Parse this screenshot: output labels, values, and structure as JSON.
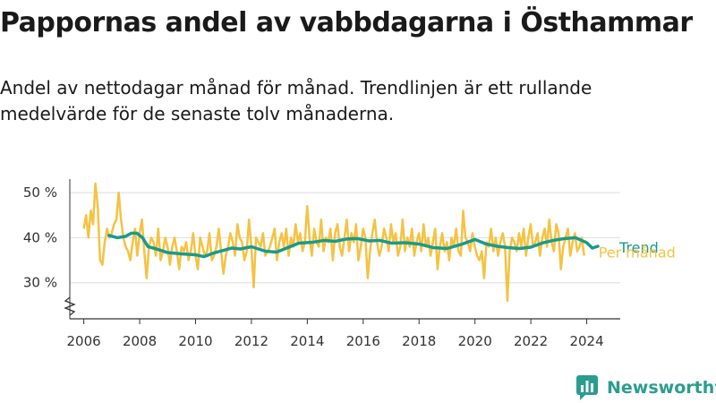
{
  "title": "Pappornas andel av vabbdagarna i Östhammar",
  "subtitle": "Andel av nettodagar månad för månad. Trendlinjen är ett rullande medelvärde för de senaste tolv månaderna.",
  "brand": "Newsworthy",
  "colors": {
    "monthly": "#f5c242",
    "trend": "#1a9a8a",
    "grid": "#dddddd",
    "axis": "#333333",
    "brand": "#2a9d8f"
  },
  "chart_data": {
    "type": "line",
    "title": "Pappornas andel av vabbdagarna i Östhammar",
    "xlabel": "",
    "ylabel": "",
    "xlim": [
      2005.5,
      2025.2
    ],
    "ylim": [
      22,
      53
    ],
    "y_ticks": [
      30,
      40,
      50
    ],
    "y_tick_labels": [
      "30 %",
      "40 %",
      "50 %"
    ],
    "x_ticks": [
      2006,
      2008,
      2010,
      2012,
      2014,
      2016,
      2018,
      2020,
      2022,
      2024
    ],
    "x_tick_labels": [
      "2006",
      "2008",
      "2010",
      "2012",
      "2014",
      "2016",
      "2018",
      "2020",
      "2022",
      "2024"
    ],
    "legend": {
      "position": "right",
      "entries": [
        "Trend",
        "Per månad"
      ]
    },
    "series": [
      {
        "name": "Per månad",
        "color": "#f5c242",
        "x_start": 2006.0,
        "step": 0.0833,
        "values": [
          42,
          45,
          40,
          46,
          43,
          52,
          47,
          35,
          34,
          39,
          42,
          40,
          41,
          43,
          44,
          50,
          44,
          40,
          38,
          37,
          35,
          39,
          42,
          36,
          41,
          44,
          37,
          31,
          38,
          40,
          39,
          36,
          42,
          35,
          37,
          40,
          38,
          34,
          38,
          40,
          37,
          33,
          38,
          37,
          39,
          35,
          37,
          41,
          36,
          33,
          40,
          38,
          36,
          37,
          41,
          35,
          36,
          38,
          42,
          37,
          32,
          36,
          38,
          41,
          39,
          36,
          43,
          40,
          39,
          35,
          37,
          44,
          38,
          29,
          40,
          39,
          38,
          41,
          36,
          37,
          38,
          40,
          42,
          35,
          39,
          41,
          38,
          42,
          36,
          40,
          38,
          43,
          39,
          41,
          37,
          39,
          47,
          40,
          36,
          42,
          39,
          38,
          44,
          37,
          40,
          39,
          42,
          35,
          41,
          43,
          38,
          36,
          40,
          44,
          37,
          41,
          39,
          43,
          35,
          38,
          42,
          40,
          31,
          37,
          41,
          44,
          39,
          36,
          38,
          42,
          40,
          37,
          43,
          39,
          41,
          36,
          38,
          44,
          37,
          40,
          38,
          42,
          36,
          39,
          41,
          37,
          43,
          38,
          40,
          36,
          39,
          42,
          33,
          38,
          41,
          37,
          39,
          35,
          40,
          38,
          42,
          37,
          36,
          46,
          40,
          39,
          37,
          41,
          38,
          36,
          35,
          37,
          31,
          39,
          38,
          42,
          37,
          40,
          36,
          39,
          41,
          38,
          26,
          37,
          40,
          39,
          37,
          41,
          38,
          42,
          36,
          40,
          43,
          38,
          39,
          41,
          36,
          40,
          42,
          38,
          44,
          39,
          37,
          43,
          41,
          33,
          38,
          40,
          42,
          36,
          39,
          41,
          37,
          38,
          40,
          36
        ]
      },
      {
        "name": "Trend",
        "color": "#1a9a8a",
        "x": [
          2006.9,
          2007.2,
          2007.5,
          2007.7,
          2007.9,
          2008.1,
          2008.3,
          2008.6,
          2009.0,
          2009.5,
          2010.0,
          2010.3,
          2010.7,
          2011.0,
          2011.3,
          2011.6,
          2012.0,
          2012.5,
          2012.9,
          2013.3,
          2013.7,
          2014.2,
          2014.6,
          2015.0,
          2015.4,
          2015.8,
          2016.2,
          2016.6,
          2017.0,
          2017.5,
          2018.0,
          2018.5,
          2019.0,
          2019.5,
          2020.0,
          2020.4,
          2020.8,
          2021.2,
          2021.6,
          2022.0,
          2022.4,
          2022.8,
          2023.2,
          2023.6,
          2024.0,
          2024.2,
          2024.4
        ],
        "values": [
          40.5,
          40,
          40.3,
          41,
          41,
          40,
          38,
          37.5,
          36.7,
          36.4,
          36.2,
          35.8,
          36.7,
          37.2,
          37.7,
          37.5,
          38,
          37,
          36.8,
          37.8,
          38.8,
          39,
          39.4,
          39.2,
          39.7,
          39.8,
          39.3,
          39.4,
          38.8,
          38.9,
          38.6,
          37.8,
          37.6,
          38.5,
          39.6,
          38.6,
          38.1,
          37.8,
          37.6,
          37.9,
          38.8,
          39.4,
          39.8,
          40,
          38.9,
          37.7,
          38.1
        ]
      }
    ]
  }
}
